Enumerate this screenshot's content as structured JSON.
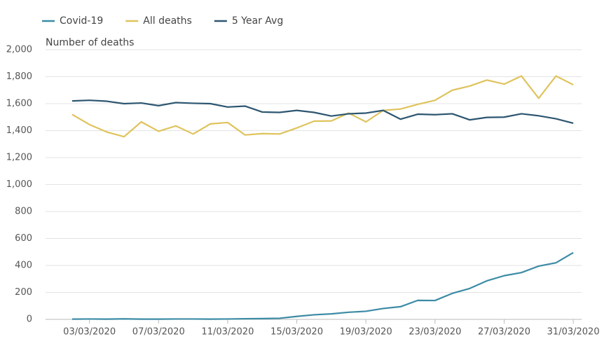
{
  "chart_data": {
    "type": "line",
    "y_axis_label": "Number of deaths",
    "categories": [
      null,
      "03/03/2020",
      null,
      null,
      null,
      "07/03/2020",
      null,
      null,
      null,
      "11/03/2020",
      null,
      null,
      null,
      "15/03/2020",
      null,
      null,
      null,
      "19/03/2020",
      null,
      null,
      null,
      "23/03/2020",
      null,
      null,
      null,
      "27/03/2020",
      null,
      null,
      null,
      "31/03/2020"
    ],
    "series": [
      {
        "name": "Covid-19",
        "color": "#3c8ba5",
        "values": [
          2,
          3,
          2,
          4,
          2,
          2,
          3,
          3,
          2,
          3,
          5,
          6,
          8,
          22,
          34,
          41,
          53,
          60,
          81,
          94,
          141,
          140,
          193,
          229,
          286,
          324,
          347,
          395,
          420,
          495
        ]
      },
      {
        "name": "All deaths",
        "color": "#dfc35c",
        "values": [
          1520,
          1445,
          1390,
          1355,
          1465,
          1395,
          1435,
          1375,
          1450,
          1460,
          1368,
          1378,
          1375,
          1420,
          1470,
          1472,
          1530,
          1465,
          1550,
          1560,
          1595,
          1625,
          1700,
          1730,
          1775,
          1745,
          1805,
          1640,
          1805,
          1740
        ]
      },
      {
        "name": "5 Year Avg",
        "color": "#2d5670",
        "values": [
          1620,
          1625,
          1618,
          1600,
          1605,
          1585,
          1608,
          1603,
          1600,
          1575,
          1582,
          1538,
          1535,
          1550,
          1535,
          1508,
          1525,
          1530,
          1550,
          1485,
          1522,
          1518,
          1525,
          1480,
          1498,
          1500,
          1525,
          1510,
          1488,
          1455
        ]
      }
    ],
    "ylim": [
      0,
      2000
    ],
    "yticks": [
      0,
      200,
      400,
      600,
      800,
      {
        "value": 1000,
        "label": "1,000"
      },
      {
        "value": 1200,
        "label": "1,200"
      },
      {
        "value": 1400,
        "label": "1,400"
      },
      {
        "value": 1600,
        "label": "1,600"
      },
      {
        "value": 1800,
        "label": "1,800"
      },
      {
        "value": 2000,
        "label": "2,000"
      }
    ],
    "grid": true,
    "legend": "top-left"
  }
}
